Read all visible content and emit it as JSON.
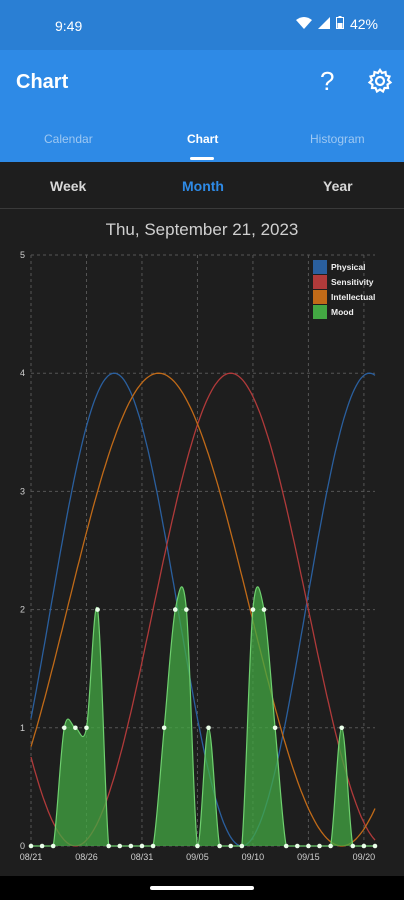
{
  "status_bar": {
    "time": "9:49",
    "battery": "42%",
    "icons": [
      "wifi-icon",
      "signal-icon",
      "battery-icon"
    ]
  },
  "app_bar": {
    "title": "Chart",
    "help_icon": "help-icon",
    "settings_icon": "gear-icon"
  },
  "tabs": [
    {
      "label": "Calendar",
      "active": false
    },
    {
      "label": "Chart",
      "active": true
    },
    {
      "label": "Histogram",
      "active": false
    }
  ],
  "subtabs": [
    {
      "label": "Week",
      "active": false
    },
    {
      "label": "Month",
      "active": true
    },
    {
      "label": "Year",
      "active": false
    }
  ],
  "date_title": "Thu, September 21, 2023",
  "colors": {
    "physical": "#2a5f9e",
    "sensitivity": "#b03a3a",
    "intellectual": "#c06a18",
    "mood": "#43a843"
  },
  "chart_data": {
    "type": "line",
    "ylim": [
      0,
      5
    ],
    "yticks": [
      "0",
      "1",
      "2",
      "3",
      "4",
      "5"
    ],
    "xticks": [
      "08/21",
      "08/26",
      "08/31",
      "09/05",
      "09/10",
      "09/15",
      "09/20"
    ],
    "legend": {
      "placement": "top-right",
      "entries": [
        "Physical",
        "Sensitivity",
        "Intellectual",
        "Mood"
      ]
    },
    "series": [
      {
        "name": "Physical",
        "style": "sine",
        "peak_day": 7.5,
        "period": 23
      },
      {
        "name": "Sensitivity",
        "style": "sine",
        "peak_day": 18,
        "period": 28
      },
      {
        "name": "Intellectual",
        "style": "sine",
        "peak_day": 11.5,
        "period": 33
      },
      {
        "name": "Mood",
        "style": "area",
        "values": [
          0,
          0,
          0,
          1,
          1,
          1,
          2,
          0,
          0,
          0,
          0,
          0,
          1,
          2,
          2,
          0,
          1,
          0,
          0,
          0,
          2,
          2,
          1,
          0,
          0,
          0,
          0,
          0,
          1,
          0,
          0,
          0
        ]
      }
    ]
  }
}
